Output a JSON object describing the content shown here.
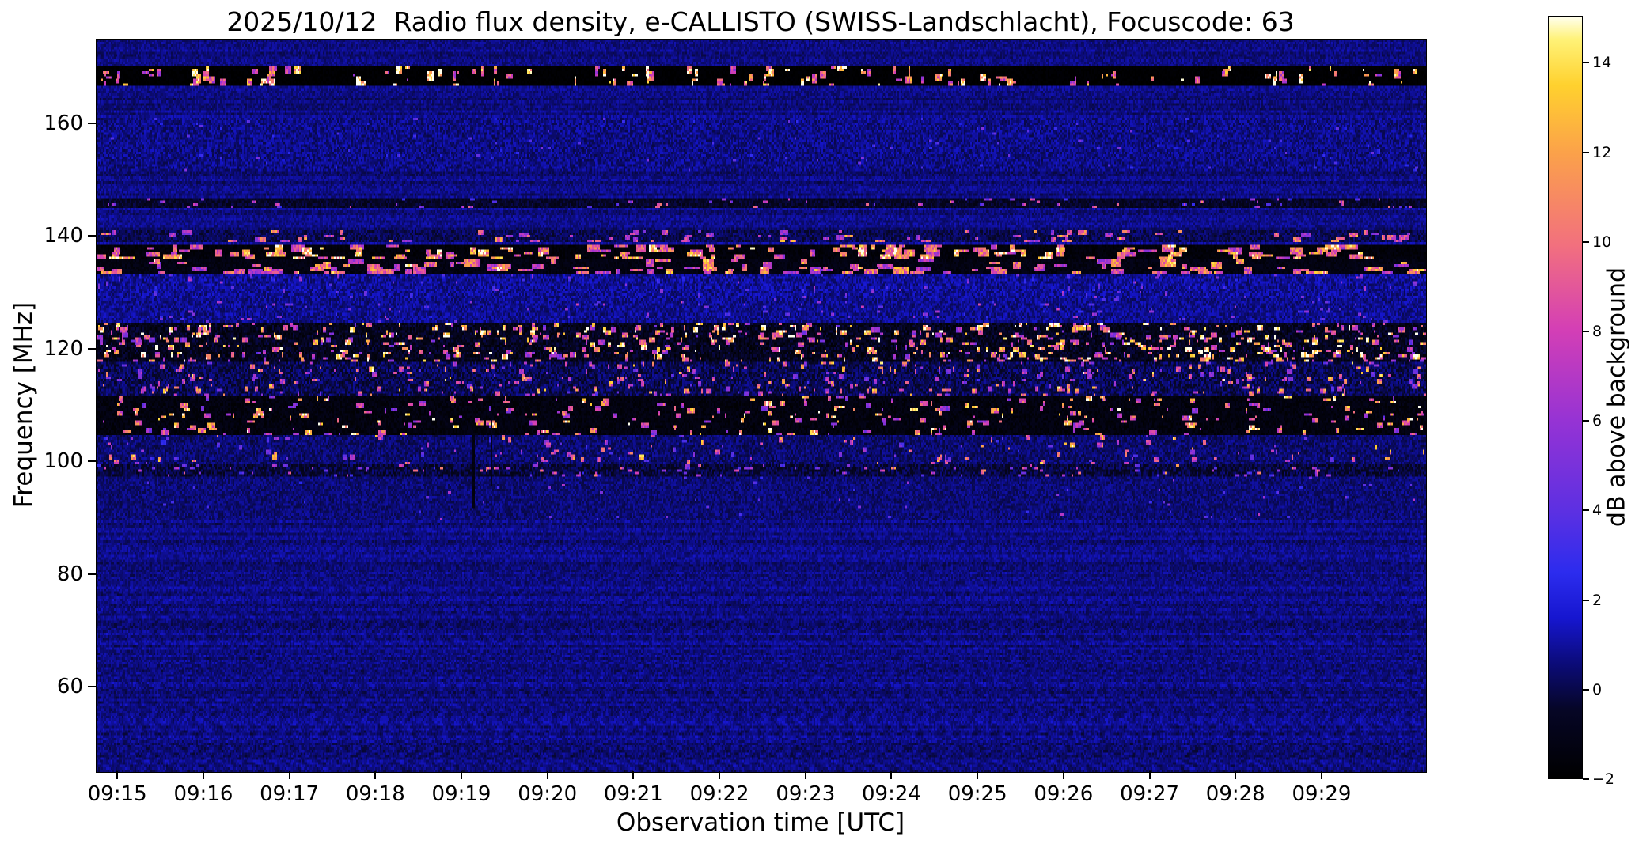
{
  "figure": {
    "background": "#ffffff"
  },
  "chart_data": {
    "type": "heatmap",
    "title": "2025/10/12  Radio flux density, e-CALLISTO (SWISS-Landschlacht), Focuscode: 63",
    "xlabel": "Observation time [UTC]",
    "ylabel": "Frequency [MHz]",
    "x_axis": {
      "tick_labels": [
        "09:15",
        "09:16",
        "09:17",
        "09:18",
        "09:19",
        "09:20",
        "09:21",
        "09:22",
        "09:23",
        "09:24",
        "09:25",
        "09:26",
        "09:27",
        "09:28",
        "09:29"
      ],
      "first_tick_frac": 0.0162,
      "tick_spacing_frac": 0.0647,
      "start": "09:15",
      "end": "09:30"
    },
    "y_axis": {
      "min": 45,
      "max": 175,
      "unit": "MHz",
      "tick_values": [
        160,
        140,
        120,
        100,
        80,
        60
      ]
    },
    "colorbar": {
      "label": "dB above background",
      "min": -2,
      "max": 15.05,
      "ticks": [
        {
          "v": 14,
          "label": "14"
        },
        {
          "v": 12,
          "label": "12"
        },
        {
          "v": 10,
          "label": "10"
        },
        {
          "v": 8,
          "label": "8"
        },
        {
          "v": 6,
          "label": "6"
        },
        {
          "v": 4,
          "label": "4"
        },
        {
          "v": 2,
          "label": "2"
        },
        {
          "v": 0,
          "label": "0"
        },
        {
          "v": -2,
          "label": "−2"
        }
      ]
    },
    "colormap": [
      {
        "t": 0.0,
        "color": "#000000"
      },
      {
        "t": 0.09,
        "color": "#060626"
      },
      {
        "t": 0.15,
        "color": "#0b0b78"
      },
      {
        "t": 0.21,
        "color": "#1616cf"
      },
      {
        "t": 0.27,
        "color": "#2c2cee"
      },
      {
        "t": 0.35,
        "color": "#5c30e2"
      },
      {
        "t": 0.47,
        "color": "#9633d4"
      },
      {
        "t": 0.59,
        "color": "#d43fb5"
      },
      {
        "t": 0.7,
        "color": "#f2707e"
      },
      {
        "t": 0.82,
        "color": "#fba14a"
      },
      {
        "t": 0.91,
        "color": "#ffd12e"
      },
      {
        "t": 0.97,
        "color": "#fff277"
      },
      {
        "t": 1.0,
        "color": "#ffffee"
      }
    ],
    "background_texture": {
      "base": 0.65,
      "noise": 0.55,
      "row_variation": 0.3,
      "stripe_amp": 0.3,
      "stripe_below_mhz": 100
    },
    "bands": [
      {
        "name": "rfi-167mhz",
        "f0": 166.8,
        "f1": 169.8,
        "base": -1.9,
        "noise": 0.25,
        "speckles": {
          "count": 150,
          "vmin": 7,
          "vmax": 15.5,
          "wmin": 1,
          "wmax": 4,
          "hmax": 4
        }
      },
      {
        "name": "mottle-156",
        "f0": 152.0,
        "f1": 161.0,
        "base": 0.7,
        "noise": 1.1,
        "speckles": {
          "count": 120,
          "vmin": 2,
          "vmax": 4.5,
          "wmin": 1,
          "wmax": 2,
          "hmax": 1
        }
      },
      {
        "name": "line-146",
        "f0": 145.3,
        "f1": 146.6,
        "base": -0.6,
        "noise": 1.0,
        "speckles": {
          "count": 70,
          "vmin": 3,
          "vmax": 9,
          "wmin": 1,
          "wmax": 3,
          "hmax": 1
        }
      },
      {
        "name": "line-140",
        "f0": 139.3,
        "f1": 141.2,
        "base": 0.1,
        "noise": 1.0,
        "speckles": {
          "count": 90,
          "vmin": 5,
          "vmax": 11,
          "wmin": 2,
          "wmax": 6,
          "hmax": 2
        }
      },
      {
        "name": "band-137",
        "f0": 136.3,
        "f1": 138.6,
        "base": -1.6,
        "noise": 0.5,
        "speckles": {
          "count": 170,
          "vmin": 7,
          "vmax": 13.5,
          "wmin": 3,
          "wmax": 9,
          "hmax": 3
        }
      },
      {
        "name": "band-134",
        "f0": 133.2,
        "f1": 135.6,
        "base": -1.3,
        "noise": 0.6,
        "speckles": {
          "count": 150,
          "vmin": 6,
          "vmax": 12.5,
          "wmin": 3,
          "wmax": 10,
          "hmax": 3
        }
      },
      {
        "name": "haze-130",
        "f0": 129.0,
        "f1": 133.2,
        "base": 0.9,
        "noise": 1.2,
        "speckles": {
          "count": 90,
          "vmin": 2.5,
          "vmax": 6,
          "wmin": 1,
          "wmax": 2,
          "hmax": 2
        }
      },
      {
        "name": "mottle-127",
        "f0": 124.5,
        "f1": 129.0,
        "base": 0.8,
        "noise": 1.1,
        "speckles": {
          "count": 110,
          "vmin": 2.5,
          "vmax": 7,
          "wmin": 1,
          "wmax": 3,
          "hmax": 1
        }
      },
      {
        "name": "dense-120",
        "f0": 117.5,
        "f1": 124.5,
        "base": -0.9,
        "noise": 1.3,
        "speckles": {
          "count": 750,
          "vmin": 5,
          "vmax": 15.5,
          "wmin": 1,
          "wmax": 4,
          "hmax": 2
        }
      },
      {
        "name": "mid-114",
        "f0": 111.5,
        "f1": 117.5,
        "base": 0.1,
        "noise": 1.3,
        "speckles": {
          "count": 380,
          "vmin": 4,
          "vmax": 12,
          "wmin": 1,
          "wmax": 3,
          "hmax": 2
        }
      },
      {
        "name": "dark-108",
        "f0": 104.5,
        "f1": 111.5,
        "base": -1.4,
        "noise": 0.7,
        "speckles": {
          "count": 330,
          "vmin": 5,
          "vmax": 14.5,
          "wmin": 1,
          "wmax": 5,
          "hmax": 2
        }
      },
      {
        "name": "sparse-101",
        "f0": 99.5,
        "f1": 104.5,
        "base": 0.4,
        "noise": 1.0,
        "speckles": {
          "count": 160,
          "vmin": 3,
          "vmax": 12,
          "wmin": 1,
          "wmax": 3,
          "hmax": 2
        }
      },
      {
        "name": "line-98",
        "f0": 97.2,
        "f1": 99.5,
        "base": -0.2,
        "noise": 1.3,
        "speckles": {
          "count": 140,
          "vmin": 3,
          "vmax": 10,
          "wmin": 1,
          "wmax": 3,
          "hmax": 1
        }
      },
      {
        "name": "faint-93",
        "f0": 90.0,
        "f1": 97.2,
        "base": 0.5,
        "noise": 0.9,
        "speckles": {
          "count": 60,
          "vmin": 2.5,
          "vmax": 6,
          "wmin": 1,
          "wmax": 2,
          "hmax": 1
        }
      }
    ],
    "dark_streaks": [
      {
        "frac": 0.283,
        "f0": 92,
        "f1": 112,
        "cols": 2,
        "value": -1.4
      },
      {
        "frac": 0.297,
        "f0": 96,
        "f1": 110,
        "cols": 1,
        "value": -1.0
      }
    ],
    "seed": 1234
  }
}
